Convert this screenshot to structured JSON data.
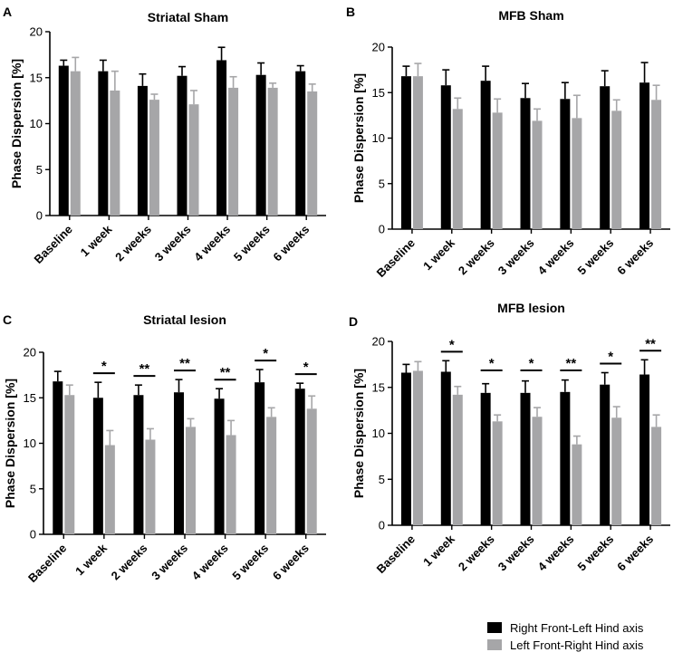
{
  "colors": {
    "series1": "#000000",
    "series2": "#a6a6a8",
    "axis": "#000000"
  },
  "legend": [
    {
      "label": "Right Front-Left Hind axis"
    },
    {
      "label": "Left Front-Right Hind axis"
    }
  ],
  "chart_data": [
    {
      "panel": "A",
      "type": "bar",
      "title": "Striatal Sham",
      "ylabel": "Phase Dispersion [%]",
      "xlabel": "",
      "ylim": [
        0,
        20
      ],
      "yticks": [
        0,
        5,
        10,
        15,
        20
      ],
      "categories": [
        "Baseline",
        "1 week",
        "2 weeks",
        "3 weeks",
        "4 weeks",
        "5 weeks",
        "6 weeks"
      ],
      "series": [
        {
          "name": "Right Front-Left Hind axis",
          "values": [
            16.3,
            15.7,
            14.1,
            15.2,
            16.9,
            15.3,
            15.7
          ],
          "errors": [
            0.6,
            1.2,
            1.3,
            1.0,
            1.4,
            1.3,
            0.6
          ]
        },
        {
          "name": "Left Front-Right Hind axis",
          "values": [
            15.7,
            13.6,
            12.6,
            12.1,
            13.9,
            13.9,
            13.5
          ],
          "errors": [
            1.5,
            2.1,
            0.6,
            1.5,
            1.2,
            0.5,
            0.8
          ]
        }
      ],
      "significance": []
    },
    {
      "panel": "B",
      "type": "bar",
      "title": "MFB Sham",
      "ylabel": "Phase Dispersion [%]",
      "xlabel": "",
      "ylim": [
        0,
        20
      ],
      "yticks": [
        0,
        5,
        10,
        15,
        20
      ],
      "categories": [
        "Baseline",
        "1 week",
        "2 weeks",
        "3 weeks",
        "4 weeks",
        "5 weeks",
        "6 weeks"
      ],
      "series": [
        {
          "name": "Right Front-Left Hind axis",
          "values": [
            16.8,
            15.8,
            16.3,
            14.4,
            14.3,
            15.7,
            16.1
          ],
          "errors": [
            1.1,
            1.7,
            1.6,
            1.6,
            1.8,
            1.7,
            2.2
          ]
        },
        {
          "name": "Left Front-Right Hind axis",
          "values": [
            16.8,
            13.2,
            12.8,
            11.9,
            12.2,
            13.0,
            14.2
          ],
          "errors": [
            1.4,
            1.2,
            1.5,
            1.3,
            2.5,
            1.2,
            1.6
          ]
        }
      ],
      "significance": []
    },
    {
      "panel": "C",
      "type": "bar",
      "title": "Striatal lesion",
      "ylabel": "Phase Dispersion [%]",
      "xlabel": "",
      "ylim": [
        0,
        20
      ],
      "yticks": [
        0,
        5,
        10,
        15,
        20
      ],
      "categories": [
        "Baseline",
        "1 week",
        "2 weeks",
        "3 weeks",
        "4 weeks",
        "5 weeks",
        "6 weeks"
      ],
      "series": [
        {
          "name": "Right Front-Left Hind axis",
          "values": [
            16.8,
            15.0,
            15.3,
            15.6,
            14.9,
            16.7,
            16.0
          ],
          "errors": [
            1.1,
            1.7,
            1.1,
            1.4,
            1.1,
            1.4,
            0.6
          ]
        },
        {
          "name": "Left Front-Right Hind axis",
          "values": [
            15.3,
            9.8,
            10.4,
            11.8,
            10.9,
            12.9,
            13.8
          ],
          "errors": [
            1.1,
            1.6,
            1.2,
            0.9,
            1.6,
            1.0,
            1.4
          ]
        }
      ],
      "significance": [
        "",
        "*",
        "**",
        "**",
        "**",
        "*",
        "*"
      ]
    },
    {
      "panel": "D",
      "type": "bar",
      "title": "MFB lesion",
      "ylabel": "Phase Dispersion [%]",
      "xlabel": "",
      "ylim": [
        0,
        20
      ],
      "yticks": [
        0,
        5,
        10,
        15,
        20
      ],
      "categories": [
        "Baseline",
        "1 week",
        "2 weeks",
        "3 weeks",
        "4 weeks",
        "5 weeks",
        "6 weeks"
      ],
      "series": [
        {
          "name": "Right Front-Left Hind axis",
          "values": [
            16.6,
            16.7,
            14.4,
            14.4,
            14.5,
            15.3,
            16.4
          ],
          "errors": [
            0.9,
            1.2,
            1.0,
            1.3,
            1.3,
            1.3,
            1.6
          ]
        },
        {
          "name": "Left Front-Right Hind axis",
          "values": [
            16.8,
            14.2,
            11.3,
            11.8,
            8.8,
            11.7,
            10.7
          ],
          "errors": [
            1.0,
            0.9,
            0.7,
            1.0,
            0.9,
            1.2,
            1.3
          ]
        }
      ],
      "significance": [
        "",
        "*",
        "*",
        "*",
        "**",
        "*",
        "**"
      ]
    }
  ]
}
